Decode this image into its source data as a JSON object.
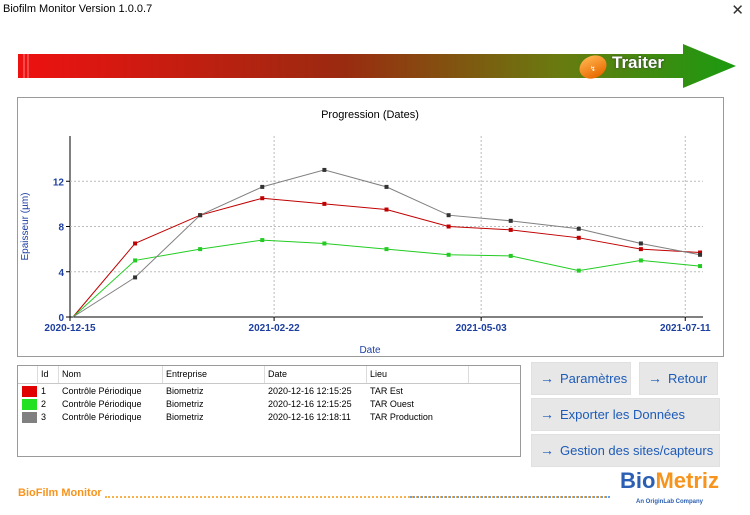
{
  "window": {
    "title": "Biofilm Monitor Version 1.0.0.7",
    "close_glyph": "✕"
  },
  "banner": {
    "label": "Traiter"
  },
  "chart_data": {
    "type": "line",
    "title": "Progression (Dates)",
    "xlabel": "Date",
    "ylabel": "Epaisseur (µm)",
    "x_ticks": [
      "2020-12-15",
      "2021-02-22",
      "2021-05-03",
      "2021-07-11"
    ],
    "y_ticks": [
      "0",
      "4",
      "8",
      "12"
    ],
    "ylim": [
      0,
      16
    ],
    "xlim": [
      "2020-12-15",
      "2021-07-17"
    ],
    "grid": true,
    "series": [
      {
        "color": "#c00000",
        "points": [
          [
            "2020-12-16",
            0
          ],
          [
            "2021-01-06",
            6.5
          ],
          [
            "2021-01-28",
            9.0
          ],
          [
            "2021-02-18",
            10.5
          ],
          [
            "2021-03-11",
            10.0
          ],
          [
            "2021-04-01",
            9.5
          ],
          [
            "2021-04-22",
            8.0
          ],
          [
            "2021-05-13",
            7.7
          ],
          [
            "2021-06-05",
            7.0
          ],
          [
            "2021-06-26",
            6.0
          ],
          [
            "2021-07-16",
            5.7
          ]
        ]
      },
      {
        "color": "#22cc22",
        "points": [
          [
            "2020-12-16",
            0
          ],
          [
            "2021-01-06",
            5.0
          ],
          [
            "2021-01-28",
            6.0
          ],
          [
            "2021-02-18",
            6.8
          ],
          [
            "2021-03-11",
            6.5
          ],
          [
            "2021-04-01",
            6.0
          ],
          [
            "2021-04-22",
            5.5
          ],
          [
            "2021-05-13",
            5.4
          ],
          [
            "2021-06-05",
            4.1
          ],
          [
            "2021-06-26",
            5.0
          ],
          [
            "2021-07-16",
            4.5
          ]
        ]
      },
      {
        "color": "#808080",
        "points": [
          [
            "2020-12-16",
            0
          ],
          [
            "2021-01-06",
            3.5
          ],
          [
            "2021-01-28",
            9.0
          ],
          [
            "2021-02-18",
            11.5
          ],
          [
            "2021-03-11",
            13.0
          ],
          [
            "2021-04-01",
            11.5
          ],
          [
            "2021-04-22",
            9.0
          ],
          [
            "2021-05-13",
            8.5
          ],
          [
            "2021-06-05",
            7.8
          ],
          [
            "2021-06-26",
            6.5
          ],
          [
            "2021-07-16",
            5.5
          ]
        ]
      }
    ]
  },
  "table": {
    "columns": [
      "Id",
      "Nom",
      "Entreprise",
      "Date",
      "Lieu"
    ],
    "rows": [
      {
        "color": "#e00000",
        "id": "1",
        "nom": "Contrôle Périodique",
        "entreprise": "Biometriz",
        "date": "2020-12-16 12:15:25",
        "lieu": "TAR Est"
      },
      {
        "color": "#22e022",
        "id": "2",
        "nom": "Contrôle Périodique",
        "entreprise": "Biometriz",
        "date": "2020-12-16 12:15:25",
        "lieu": "TAR Ouest"
      },
      {
        "color": "#808080",
        "id": "3",
        "nom": "Contrôle Périodique",
        "entreprise": "Biometriz",
        "date": "2020-12-16 12:18:11",
        "lieu": "TAR Production"
      }
    ]
  },
  "buttons": {
    "parametres": "Paramètres",
    "retour": "Retour",
    "exporter": "Exporter les Données",
    "gestion": "Gestion des sites/capteurs",
    "arrow": "→"
  },
  "footer": {
    "product_logo": "BioFilm Monitor",
    "brand": "BioMetriz",
    "brand_sub": "An OriginLab Company"
  }
}
